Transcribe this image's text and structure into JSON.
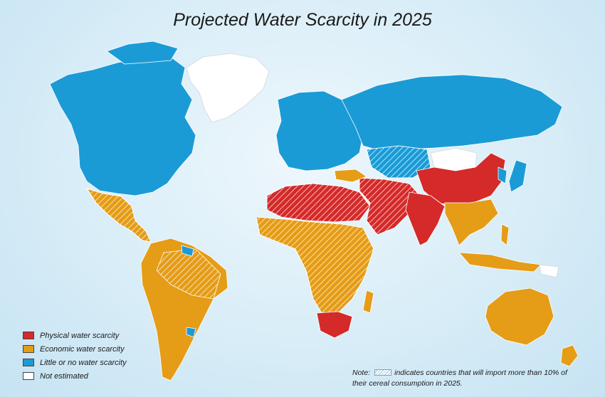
{
  "title": "Projected Water Scarcity in 2025",
  "legend": {
    "items": [
      {
        "label": "Physical water scarcity",
        "color": "#d42a2a"
      },
      {
        "label": "Economic water scarcity",
        "color": "#e59c16"
      },
      {
        "label": "Little or no water scarcity",
        "color": "#1b9bd6"
      },
      {
        "label": "Not estimated",
        "color": "#ffffff"
      }
    ]
  },
  "note": {
    "prefix": "Note:",
    "text": "indicates countries that will import more than 10% of their cereal consumption in 2025."
  },
  "colors": {
    "ocean": "#d6ecf7",
    "border": "#ffffff",
    "hatch": "#ffffff"
  }
}
